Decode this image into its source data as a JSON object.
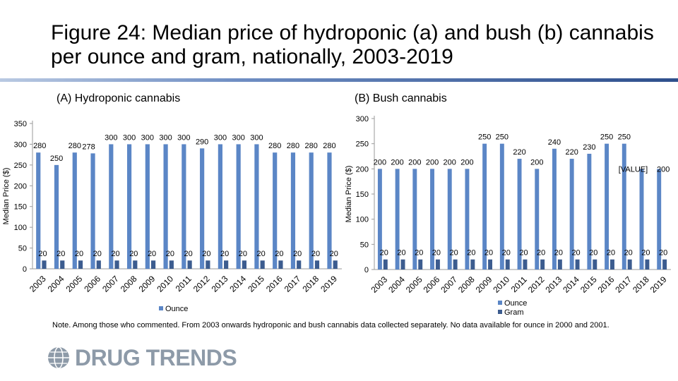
{
  "title": "Figure 24: Median price of hydroponic (a) and bush (b) cannabis per ounce and gram, nationally, 2003-2019",
  "note": "Note. Among those who commented. From 2003 onwards hydroponic and bush cannabis data collected separately. No data available for ounce in 2000 and 2001.",
  "logo": {
    "text": "DRUG TRENDS",
    "icon": "globe-icon"
  },
  "colors": {
    "ounce": "#5b86c6",
    "gram": "#3c5c8f",
    "accent": "#2e4f8c",
    "logo": "#8d9aa8"
  },
  "chart_data": [
    {
      "type": "bar",
      "title": "(A) Hydroponic cannabis",
      "ylabel": "Median Price ($)",
      "xlabel": "",
      "ylim": [
        0,
        350
      ],
      "yticks": [
        0,
        50,
        100,
        150,
        200,
        250,
        300,
        350
      ],
      "categories": [
        "2003",
        "2004",
        "2005",
        "2006",
        "2007",
        "2008",
        "2009",
        "2010",
        "2011",
        "2012",
        "2013",
        "2014",
        "2015",
        "2016",
        "2017",
        "2018",
        "2019"
      ],
      "series": [
        {
          "name": "Ounce",
          "values": [
            280,
            250,
            280,
            278,
            300,
            300,
            300,
            300,
            300,
            290,
            300,
            300,
            300,
            280,
            280,
            280,
            280
          ],
          "labels": [
            "280",
            "250",
            "280",
            "278",
            "300",
            "300",
            "300",
            "300",
            "300",
            "290",
            "300",
            "300",
            "300",
            "280",
            "280",
            "280",
            "280"
          ]
        },
        {
          "name": "",
          "values": [
            20,
            20,
            20,
            20,
            20,
            20,
            20,
            20,
            20,
            20,
            20,
            20,
            20,
            20,
            20,
            20,
            20
          ],
          "labels": [
            "20",
            "20",
            "20",
            "20",
            "20",
            "20",
            "20",
            "20",
            "20",
            "20",
            "20",
            "20",
            "20",
            "20",
            "20",
            "20",
            "20"
          ]
        }
      ],
      "legend": [
        "Ounce"
      ],
      "legend_position": "bottom",
      "grid": false
    },
    {
      "type": "bar",
      "title": "(B) Bush cannabis",
      "ylabel": "Median Price ($)",
      "xlabel": "",
      "ylim": [
        0,
        300
      ],
      "yticks": [
        0,
        50,
        100,
        150,
        200,
        250,
        300
      ],
      "categories": [
        "2003",
        "2004",
        "2005",
        "2006",
        "2007",
        "2008",
        "2009",
        "2010",
        "2011",
        "2012",
        "2013",
        "2014",
        "2015",
        "2016",
        "2017",
        "2018",
        "2019"
      ],
      "series": [
        {
          "name": "Ounce",
          "values": [
            200,
            200,
            200,
            200,
            200,
            200,
            250,
            250,
            220,
            200,
            240,
            220,
            230,
            250,
            250,
            200,
            200
          ],
          "labels": [
            "200",
            "200",
            "200",
            "200",
            "200",
            "200",
            "250",
            "250",
            "220",
            "200",
            "240",
            "220",
            "230",
            "250",
            "250",
            "[VALUE]",
            "200"
          ]
        },
        {
          "name": "Gram",
          "values": [
            20,
            20,
            20,
            20,
            20,
            20,
            20,
            20,
            20,
            20,
            20,
            20,
            20,
            20,
            20,
            20,
            20
          ],
          "labels": [
            "20",
            "20",
            "20",
            "20",
            "20",
            "20",
            "20",
            "20",
            "20",
            "20",
            "20",
            "20",
            "20",
            "20",
            "20",
            "20",
            "20"
          ]
        }
      ],
      "legend": [
        "Ounce",
        "Gram"
      ],
      "legend_position": "bottom",
      "grid": false
    }
  ]
}
